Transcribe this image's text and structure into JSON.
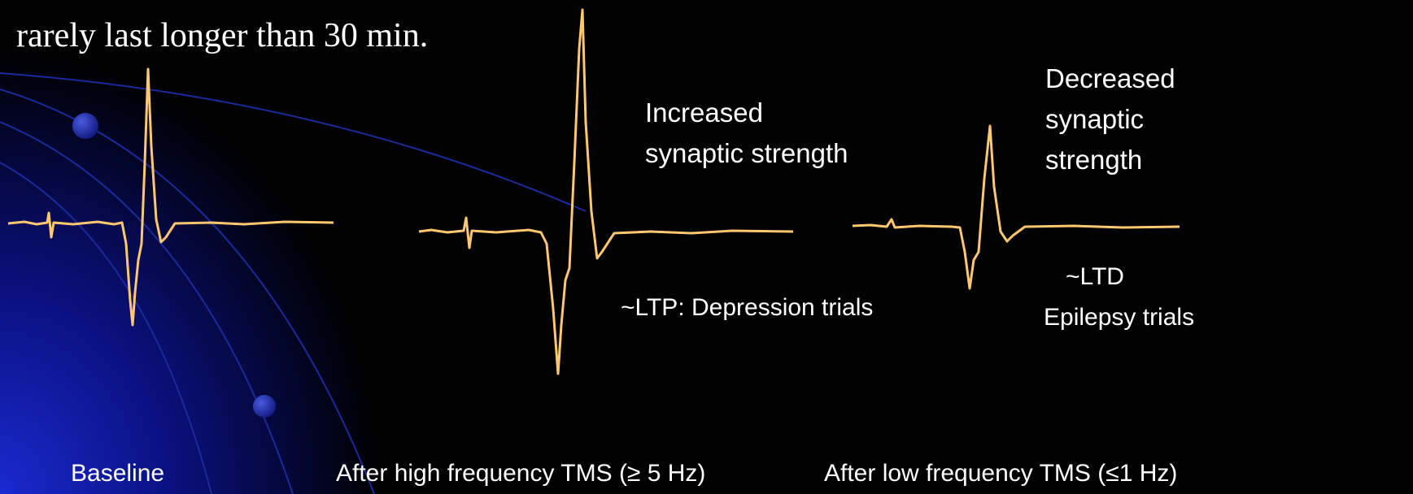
{
  "header_text": "rarely last longer than 30 min.",
  "panels": [
    {
      "caption": "Baseline"
    },
    {
      "caption": "After high frequency TMS (≥ 5 Hz)",
      "effect": [
        "Increased",
        "synaptic strength"
      ],
      "note": [
        "~LTP: Depression trials"
      ]
    },
    {
      "caption": "After low frequency TMS (≤1 Hz)",
      "effect": [
        "Decreased",
        "synaptic",
        "strength"
      ],
      "note": [
        "~LTD",
        "Epilepsy trials"
      ]
    }
  ]
}
